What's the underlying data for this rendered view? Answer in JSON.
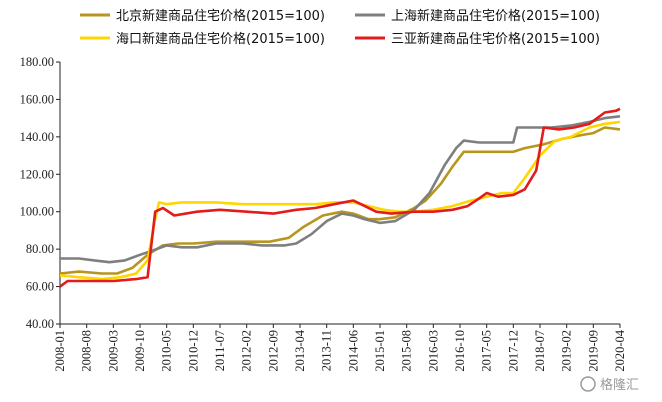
{
  "chart_data": {
    "type": "line",
    "title": "",
    "xlabel": "",
    "ylabel": "",
    "ylim": [
      40,
      180
    ],
    "yticks": [
      "40.00",
      "60.00",
      "80.00",
      "100.00",
      "120.00",
      "140.00",
      "160.00",
      "180.00"
    ],
    "xticks": [
      "2008-01",
      "2008-08",
      "2009-03",
      "2009-10",
      "2010-05",
      "2010-12",
      "2011-07",
      "2012-02",
      "2012-09",
      "2013-04",
      "2013-11",
      "2014-06",
      "2015-01",
      "2015-08",
      "2016-03",
      "2016-10",
      "2017-05",
      "2017-12",
      "2018-07",
      "2019-02",
      "2019-09",
      "2020-04"
    ],
    "grid": false,
    "legend_position": "top",
    "series": [
      {
        "name": "北京新建商品住宅价格(2015=100)",
        "color": "#b8961e",
        "points": [
          [
            "2008-01",
            67
          ],
          [
            "2008-06",
            68
          ],
          [
            "2008-12",
            67
          ],
          [
            "2009-04",
            67
          ],
          [
            "2009-08",
            70
          ],
          [
            "2009-12",
            77
          ],
          [
            "2010-04",
            82
          ],
          [
            "2010-08",
            83
          ],
          [
            "2010-12",
            83
          ],
          [
            "2011-06",
            84
          ],
          [
            "2012-01",
            84
          ],
          [
            "2012-08",
            84
          ],
          [
            "2013-01",
            86
          ],
          [
            "2013-05",
            92
          ],
          [
            "2013-10",
            98
          ],
          [
            "2014-03",
            100
          ],
          [
            "2014-06",
            99
          ],
          [
            "2014-10",
            96
          ],
          [
            "2015-01",
            96
          ],
          [
            "2015-05",
            97
          ],
          [
            "2015-10",
            102
          ],
          [
            "2016-01",
            106
          ],
          [
            "2016-05",
            115
          ],
          [
            "2016-08",
            124
          ],
          [
            "2016-11",
            132
          ],
          [
            "2017-03",
            132
          ],
          [
            "2017-08",
            132
          ],
          [
            "2017-12",
            132
          ],
          [
            "2018-03",
            134
          ],
          [
            "2018-08",
            136
          ],
          [
            "2019-01",
            139
          ],
          [
            "2019-06",
            141
          ],
          [
            "2019-09",
            142
          ],
          [
            "2019-12",
            145
          ],
          [
            "2020-04",
            144
          ]
        ]
      },
      {
        "name": "上海新建商品住宅价格(2015=100)",
        "color": "#7f7f7f",
        "points": [
          [
            "2008-01",
            75
          ],
          [
            "2008-06",
            75
          ],
          [
            "2008-10",
            74
          ],
          [
            "2009-02",
            73
          ],
          [
            "2009-06",
            74
          ],
          [
            "2009-10",
            77
          ],
          [
            "2010-01",
            79
          ],
          [
            "2010-05",
            82
          ],
          [
            "2010-09",
            81
          ],
          [
            "2011-01",
            81
          ],
          [
            "2011-06",
            83
          ],
          [
            "2012-01",
            83
          ],
          [
            "2012-06",
            82
          ],
          [
            "2012-12",
            82
          ],
          [
            "2013-03",
            83
          ],
          [
            "2013-07",
            88
          ],
          [
            "2013-11",
            95
          ],
          [
            "2014-03",
            99
          ],
          [
            "2014-06",
            98
          ],
          [
            "2014-09",
            96
          ],
          [
            "2015-01",
            94
          ],
          [
            "2015-05",
            95
          ],
          [
            "2015-10",
            101
          ],
          [
            "2016-02",
            110
          ],
          [
            "2016-06",
            125
          ],
          [
            "2016-09",
            134
          ],
          [
            "2016-11",
            138
          ],
          [
            "2017-03",
            137
          ],
          [
            "2017-08",
            137
          ],
          [
            "2017-12",
            137
          ],
          [
            "2018-01",
            145
          ],
          [
            "2018-04",
            145
          ],
          [
            "2018-10",
            145
          ],
          [
            "2019-03",
            146
          ],
          [
            "2019-08",
            148
          ],
          [
            "2019-12",
            150
          ],
          [
            "2020-04",
            151
          ]
        ]
      },
      {
        "name": "海口新建商品住宅价格(2015=100)",
        "color": "#ffd700",
        "points": [
          [
            "2008-01",
            66
          ],
          [
            "2008-06",
            65
          ],
          [
            "2008-12",
            64
          ],
          [
            "2009-05",
            65
          ],
          [
            "2009-09",
            67
          ],
          [
            "2009-12",
            74
          ],
          [
            "2010-02",
            96
          ],
          [
            "2010-03",
            105
          ],
          [
            "2010-05",
            104
          ],
          [
            "2010-09",
            105
          ],
          [
            "2011-06",
            105
          ],
          [
            "2012-01",
            104
          ],
          [
            "2012-08",
            104
          ],
          [
            "2013-03",
            104
          ],
          [
            "2013-08",
            104
          ],
          [
            "2014-01",
            105
          ],
          [
            "2014-06",
            105
          ],
          [
            "2014-10",
            103
          ],
          [
            "2015-02",
            101
          ],
          [
            "2015-06",
            100
          ],
          [
            "2015-10",
            100
          ],
          [
            "2016-03",
            101
          ],
          [
            "2016-08",
            103
          ],
          [
            "2017-01",
            106
          ],
          [
            "2017-05",
            108
          ],
          [
            "2017-09",
            110
          ],
          [
            "2017-12",
            110
          ],
          [
            "2018-03",
            118
          ],
          [
            "2018-07",
            130
          ],
          [
            "2018-11",
            138
          ],
          [
            "2019-03",
            140
          ],
          [
            "2019-08",
            145
          ],
          [
            "2019-12",
            147
          ],
          [
            "2020-04",
            148
          ]
        ]
      },
      {
        "name": "三亚新建商品住宅价格(2015=100)",
        "color": "#e31b1b",
        "points": [
          [
            "2008-01",
            60
          ],
          [
            "2008-03",
            63
          ],
          [
            "2008-08",
            63
          ],
          [
            "2009-03",
            63
          ],
          [
            "2009-09",
            64
          ],
          [
            "2009-12",
            65
          ],
          [
            "2010-02",
            100
          ],
          [
            "2010-04",
            102
          ],
          [
            "2010-07",
            98
          ],
          [
            "2011-01",
            100
          ],
          [
            "2011-07",
            101
          ],
          [
            "2012-02",
            100
          ],
          [
            "2012-09",
            99
          ],
          [
            "2013-03",
            101
          ],
          [
            "2013-08",
            102
          ],
          [
            "2014-01",
            104
          ],
          [
            "2014-06",
            106
          ],
          [
            "2014-08",
            104
          ],
          [
            "2014-12",
            100
          ],
          [
            "2015-04",
            99
          ],
          [
            "2015-10",
            100
          ],
          [
            "2016-03",
            100
          ],
          [
            "2016-08",
            101
          ],
          [
            "2016-12",
            103
          ],
          [
            "2017-03",
            107
          ],
          [
            "2017-05",
            110
          ],
          [
            "2017-08",
            108
          ],
          [
            "2017-12",
            109
          ],
          [
            "2018-03",
            112
          ],
          [
            "2018-06",
            122
          ],
          [
            "2018-08",
            145
          ],
          [
            "2018-12",
            144
          ],
          [
            "2019-04",
            145
          ],
          [
            "2019-08",
            147
          ],
          [
            "2019-12",
            153
          ],
          [
            "2020-03",
            154
          ],
          [
            "2020-04",
            155
          ]
        ]
      }
    ]
  },
  "watermark": "格隆汇"
}
